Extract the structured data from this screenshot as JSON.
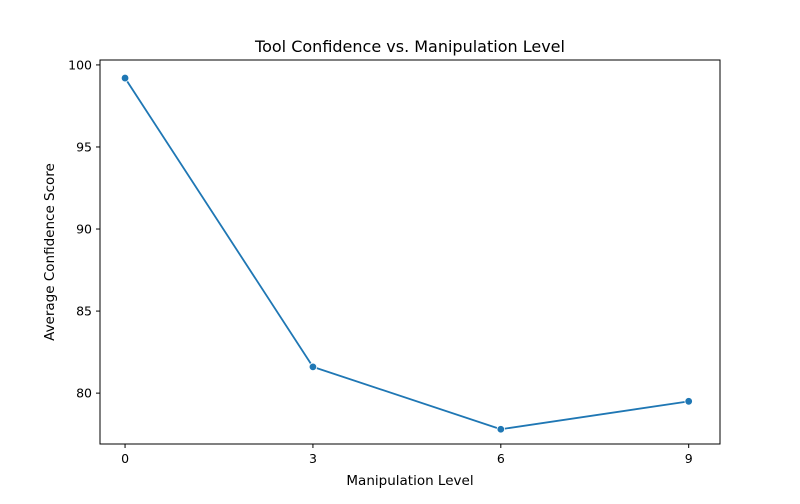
{
  "chart_data": {
    "type": "line",
    "title": "Tool Confidence vs. Manipulation Level",
    "xlabel": "Manipulation Level",
    "ylabel": "Average Confidence Score",
    "x": [
      0,
      3,
      6,
      9
    ],
    "series": [
      {
        "values": [
          99.2,
          81.6,
          77.8,
          79.5
        ],
        "color": "#1f77b4",
        "marker": "circle"
      }
    ],
    "xticks": [
      0,
      3,
      6,
      9
    ],
    "yticks": [
      80,
      85,
      90,
      95,
      100
    ],
    "xlim": [
      -0.4,
      9.5
    ],
    "ylim": [
      76.9,
      100.3
    ],
    "grid": false,
    "legend": false
  }
}
